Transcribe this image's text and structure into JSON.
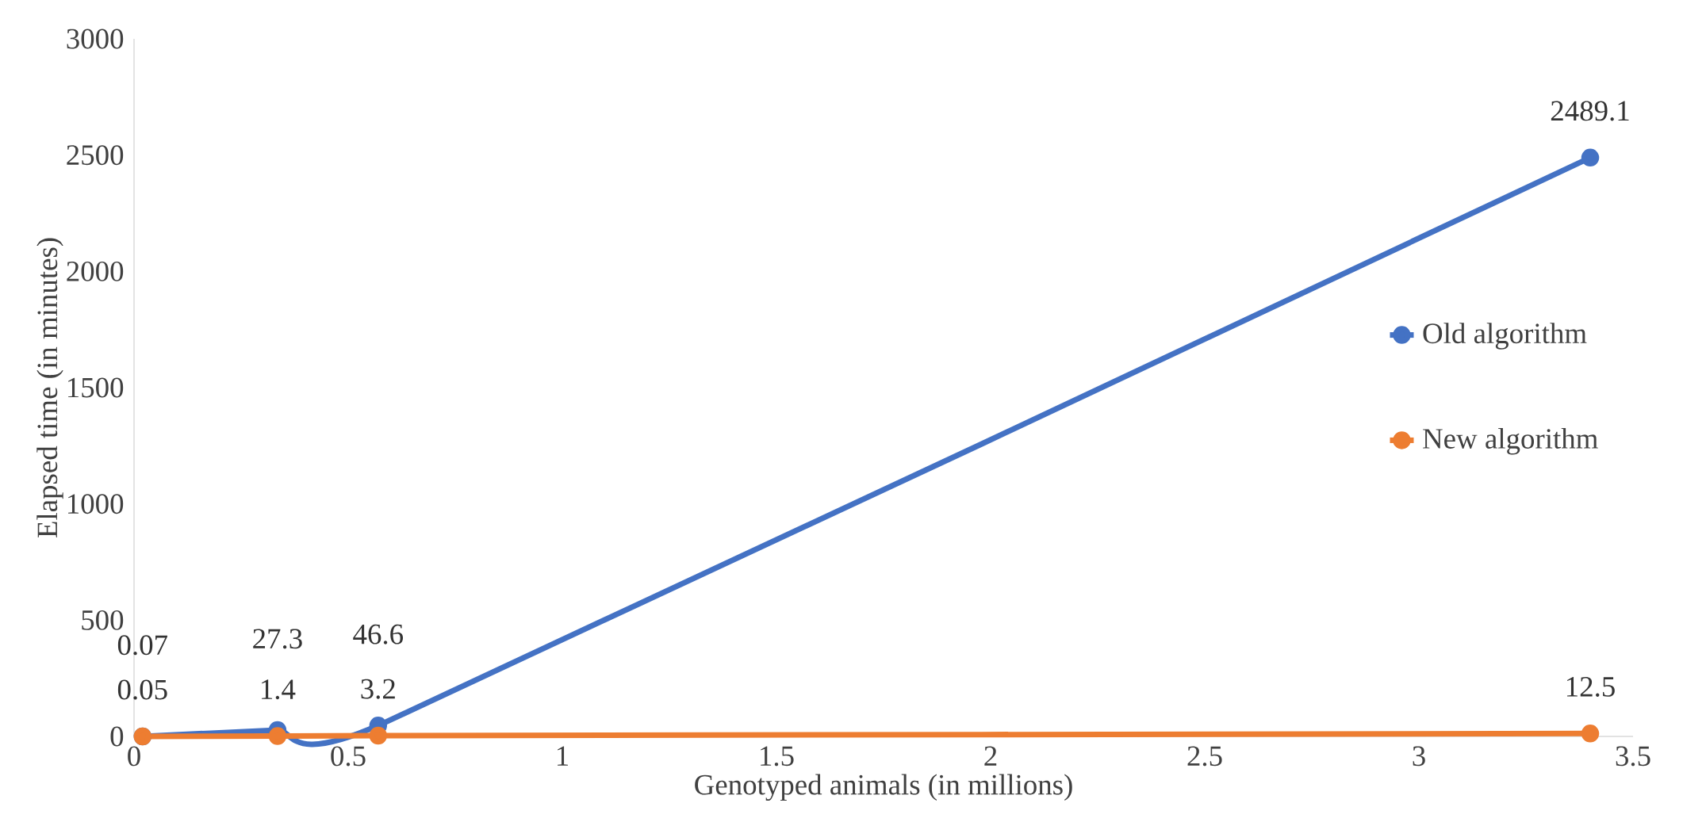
{
  "chart_data": {
    "type": "line",
    "xlabel": "Genotyped animals (in millions)",
    "ylabel": "Elapsed time (in minutes)",
    "xlim": [
      0,
      3.5
    ],
    "xticks": [
      0,
      0.5,
      1,
      1.5,
      2,
      2.5,
      3,
      3.5
    ],
    "ylim": [
      0,
      3000
    ],
    "yticks": [
      0,
      500,
      1000,
      1500,
      2000,
      2500,
      3000
    ],
    "x": [
      0.02,
      0.335,
      0.57,
      3.4
    ],
    "series": [
      {
        "name": "Old algorithm",
        "color": "#4472c4",
        "values": [
          0.07,
          27.3,
          46.6,
          2489.1
        ]
      },
      {
        "name": "New algorithm",
        "color": "#ed7d31",
        "values": [
          0.05,
          1.4,
          3.2,
          12.5
        ]
      }
    ],
    "marker": "circle",
    "grid": false,
    "legend": "right",
    "data_labels": true
  }
}
